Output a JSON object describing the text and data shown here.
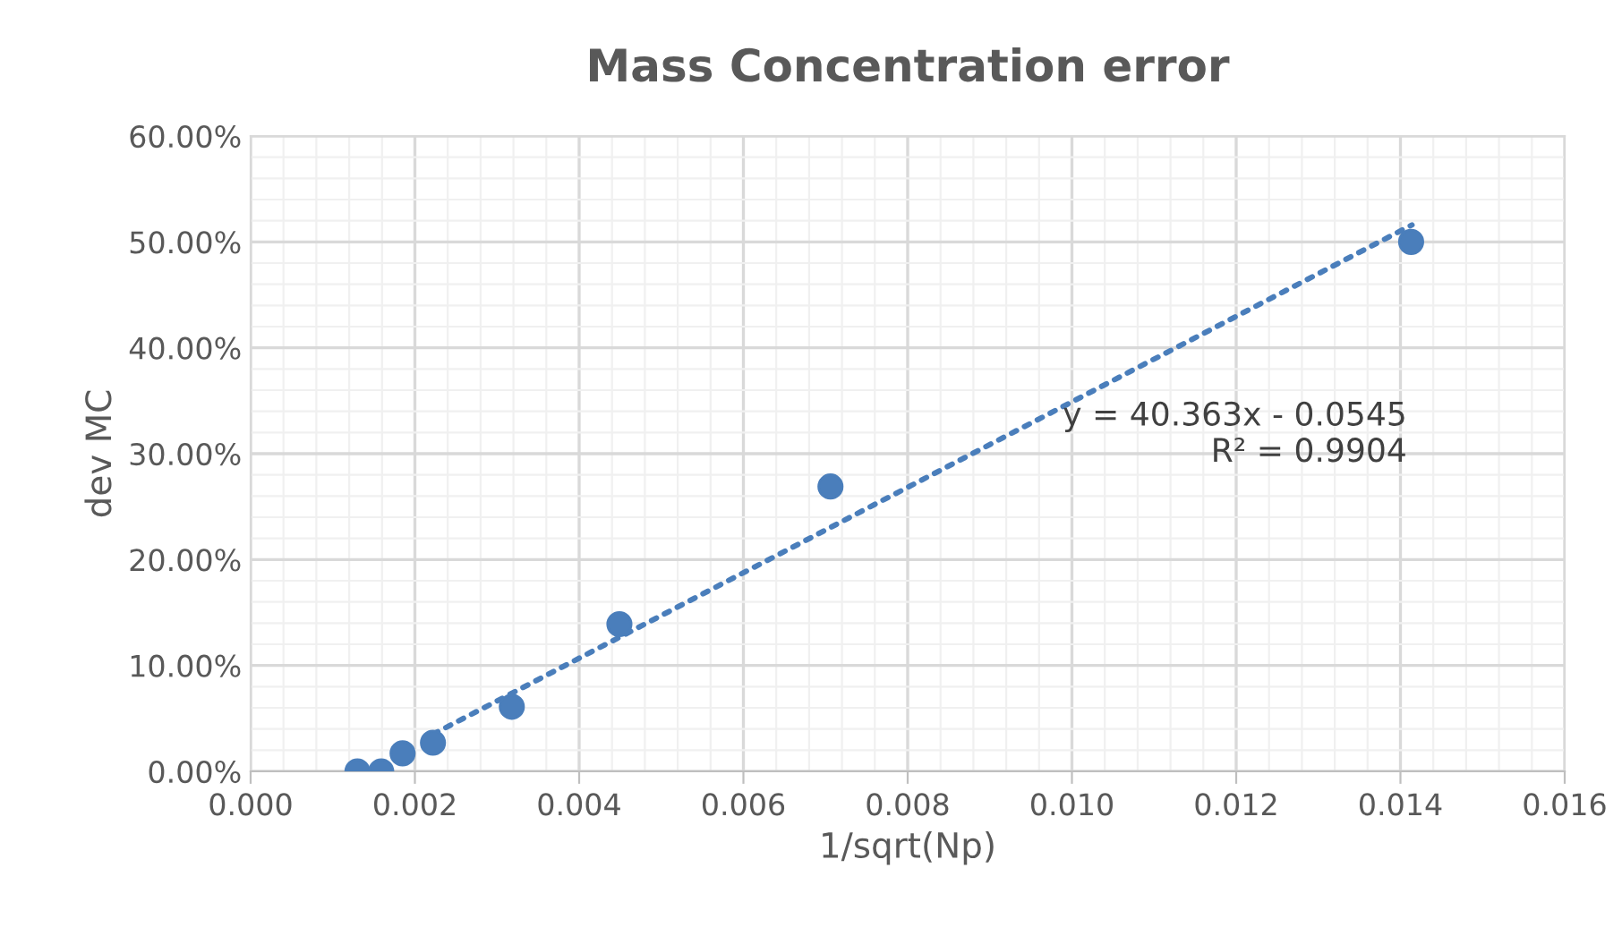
{
  "chart_data": {
    "type": "scatter",
    "title": "Mass Concentration error",
    "xlabel": "1/sqrt(Np)",
    "ylabel": "dev MC",
    "x": [
      0.0013,
      0.00159,
      0.00185,
      0.00222,
      0.00318,
      0.00449,
      0.00706,
      0.01413
    ],
    "series": [
      {
        "color": "#4a7ebb",
        "values": [
          0.0,
          0.0,
          0.017,
          0.027,
          0.061,
          0.139,
          0.269,
          0.5
        ],
        "marker": "circle"
      },
      {
        "type": "line",
        "color": "#4a7ebb",
        "x": [
          0.00222,
          0.01414
        ],
        "values": [
          0.035,
          0.516
        ],
        "line_style": "dotted",
        "marker": "none"
      }
    ],
    "annotations": [
      "y = 40.363x - 0.0545\nR² = 0.9904"
    ],
    "xlim": [
      0,
      0.016
    ],
    "xticks": [
      {
        "value": 0,
        "label": "0.000"
      },
      {
        "value": 0.002,
        "label": "0.002"
      },
      {
        "value": 0.004,
        "label": "0.004"
      },
      {
        "value": 0.006,
        "label": "0.006"
      },
      {
        "value": 0.008,
        "label": "0.008"
      },
      {
        "value": 0.01,
        "label": "0.010"
      },
      {
        "value": 0.012,
        "label": "0.012"
      },
      {
        "value": 0.014,
        "label": "0.014"
      },
      {
        "value": 0.016,
        "label": "0.016"
      }
    ],
    "ylim": [
      0,
      0.6
    ],
    "yticks": [
      {
        "value": 0,
        "label": "0.00%"
      },
      {
        "value": 0.1,
        "label": "10.00%"
      },
      {
        "value": 0.2,
        "label": "20.00%"
      },
      {
        "value": 0.3,
        "label": "30.00%"
      },
      {
        "value": 0.4,
        "label": "40.00%"
      },
      {
        "value": 0.5,
        "label": "50.00%"
      },
      {
        "value": 0.6,
        "label": "60.00%"
      }
    ],
    "grid": true
  }
}
